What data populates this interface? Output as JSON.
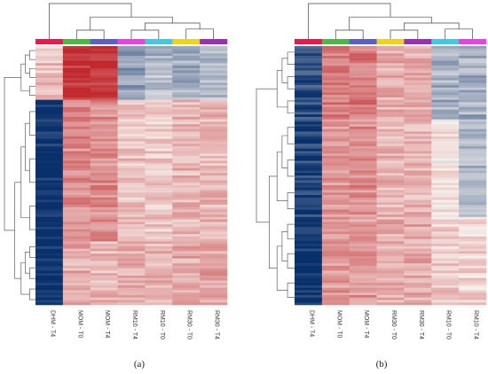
{
  "chart_data": [
    {
      "type": "heatmap",
      "panel_label": "(a)",
      "columns": [
        "DHM - T4",
        "MOM - T0",
        "MOM - T4",
        "RM10 - T4",
        "RM10 - T0",
        "RM30 - T0",
        "RM30 - T4"
      ],
      "column_colors": [
        "#e8194d",
        "#4db848",
        "#5b5fc7",
        "#e841e8",
        "#41c8e8",
        "#f0d21e",
        "#9b2fb5"
      ],
      "row_blocks": [
        {
          "rows": 22,
          "values": [
            0.25,
            0.9,
            0.95,
            -0.45,
            -0.3,
            -0.35,
            -0.3
          ]
        },
        {
          "rows": 58,
          "values": [
            -1.0,
            0.5,
            0.5,
            0.25,
            0.2,
            0.3,
            0.3
          ]
        },
        {
          "rows": 26,
          "values": [
            -1.0,
            0.35,
            0.3,
            0.35,
            0.3,
            0.35,
            0.4
          ]
        }
      ],
      "color_scale": {
        "low": "#08306b",
        "mid": "#f7f2ee",
        "high": "#c0282d",
        "range": [
          -1,
          1
        ]
      }
    },
    {
      "type": "heatmap",
      "panel_label": "(b)",
      "columns": [
        "DHM - T4",
        "MOM - T0",
        "MOM - T4",
        "RM30 - T0",
        "RM30 - T4",
        "RM10 - T0",
        "RM10 - T4"
      ],
      "column_colors": [
        "#e8194d",
        "#4db848",
        "#5b5fc7",
        "#f0d21e",
        "#9b2fb5",
        "#41c8e8",
        "#e841e8"
      ],
      "row_blocks": [
        {
          "rows": 30,
          "values": [
            -0.85,
            0.6,
            0.6,
            0.35,
            0.35,
            -0.35,
            -0.35
          ]
        },
        {
          "rows": 40,
          "values": [
            -0.9,
            0.45,
            0.5,
            0.3,
            0.3,
            0.05,
            -0.3
          ]
        },
        {
          "rows": 36,
          "values": [
            -1.0,
            0.45,
            0.45,
            0.35,
            0.35,
            0.2,
            0.15
          ]
        }
      ],
      "color_scale": {
        "low": "#08306b",
        "mid": "#f7f2ee",
        "high": "#c0282d",
        "range": [
          -1,
          1
        ]
      }
    }
  ]
}
